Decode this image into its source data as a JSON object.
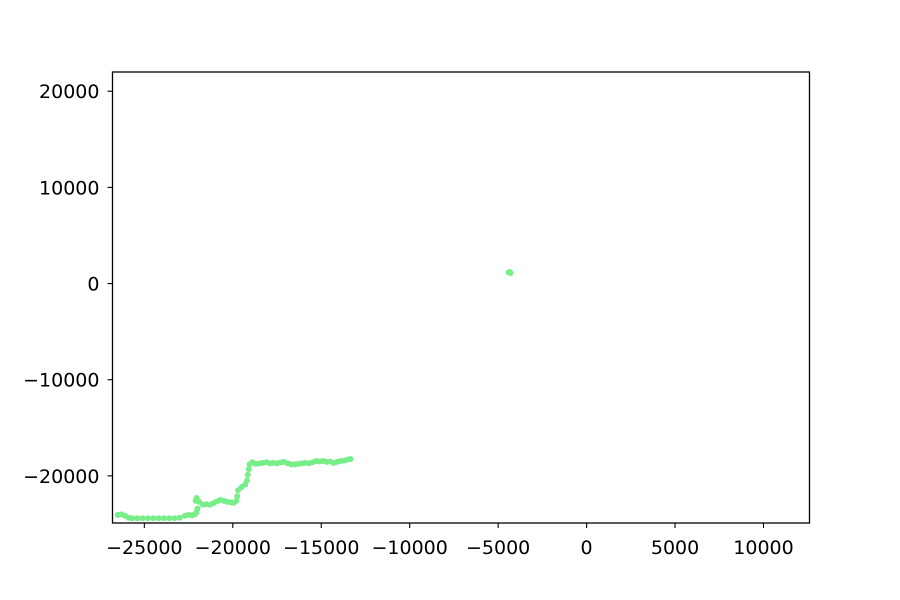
{
  "chart_data": {
    "type": "scatter",
    "title": "",
    "xlabel": "",
    "ylabel": "",
    "xlim": [
      -26800,
      12600
    ],
    "ylim": [
      -24900,
      22000
    ],
    "grid": false,
    "legend": "none",
    "x_ticks": [
      -25000,
      -20000,
      -15000,
      -10000,
      -5000,
      0,
      5000,
      10000
    ],
    "x_tick_labels": [
      "−25000",
      "−20000",
      "−15000",
      "−10000",
      "−5000",
      "0",
      "5000",
      "10000"
    ],
    "y_ticks": [
      -20000,
      -10000,
      0,
      10000,
      20000
    ],
    "y_tick_labels": [
      "−20000",
      "−10000",
      "0",
      "10000",
      "20000"
    ],
    "series": [
      {
        "color": "#77ee88",
        "points": [
          [
            -26500,
            -24050
          ],
          [
            -26300,
            -24000
          ],
          [
            -26100,
            -24150
          ],
          [
            -25900,
            -24350
          ],
          [
            -25700,
            -24400
          ],
          [
            -25400,
            -24400
          ],
          [
            -25100,
            -24400
          ],
          [
            -24800,
            -24400
          ],
          [
            -24500,
            -24400
          ],
          [
            -24200,
            -24400
          ],
          [
            -23900,
            -24400
          ],
          [
            -23600,
            -24400
          ],
          [
            -23300,
            -24400
          ],
          [
            -23000,
            -24350
          ],
          [
            -22700,
            -24150
          ],
          [
            -22500,
            -24050
          ],
          [
            -22300,
            -24100
          ],
          [
            -22150,
            -24000
          ],
          [
            -22050,
            -23800
          ],
          [
            -22000,
            -23400
          ],
          [
            -22100,
            -22600
          ],
          [
            -22050,
            -22300
          ],
          [
            -21900,
            -22700
          ],
          [
            -21700,
            -23000
          ],
          [
            -21500,
            -22950
          ],
          [
            -21300,
            -23000
          ],
          [
            -21100,
            -22850
          ],
          [
            -20900,
            -22650
          ],
          [
            -20700,
            -22500
          ],
          [
            -20500,
            -22600
          ],
          [
            -20300,
            -22700
          ],
          [
            -20100,
            -22750
          ],
          [
            -19950,
            -22800
          ],
          [
            -19800,
            -22600
          ],
          [
            -19750,
            -22100
          ],
          [
            -19700,
            -21500
          ],
          [
            -19500,
            -21150
          ],
          [
            -19300,
            -20900
          ],
          [
            -19200,
            -20500
          ],
          [
            -19150,
            -19900
          ],
          [
            -19100,
            -19300
          ],
          [
            -19050,
            -18800
          ],
          [
            -18900,
            -18600
          ],
          [
            -18700,
            -18750
          ],
          [
            -18500,
            -18700
          ],
          [
            -18300,
            -18650
          ],
          [
            -18100,
            -18600
          ],
          [
            -17900,
            -18700
          ],
          [
            -17700,
            -18650
          ],
          [
            -17500,
            -18700
          ],
          [
            -17300,
            -18600
          ],
          [
            -17100,
            -18550
          ],
          [
            -16900,
            -18700
          ],
          [
            -16700,
            -18800
          ],
          [
            -16500,
            -18800
          ],
          [
            -16300,
            -18750
          ],
          [
            -16100,
            -18700
          ],
          [
            -15900,
            -18650
          ],
          [
            -15700,
            -18700
          ],
          [
            -15500,
            -18600
          ],
          [
            -15300,
            -18450
          ],
          [
            -15100,
            -18500
          ],
          [
            -14900,
            -18450
          ],
          [
            -14700,
            -18550
          ],
          [
            -14500,
            -18500
          ],
          [
            -14300,
            -18650
          ],
          [
            -14100,
            -18550
          ],
          [
            -13900,
            -18450
          ],
          [
            -13700,
            -18400
          ],
          [
            -13500,
            -18300
          ],
          [
            -13350,
            -18250
          ],
          [
            -4350,
            1200
          ],
          [
            -4300,
            1100
          ],
          [
            -4400,
            1150
          ]
        ]
      }
    ]
  }
}
